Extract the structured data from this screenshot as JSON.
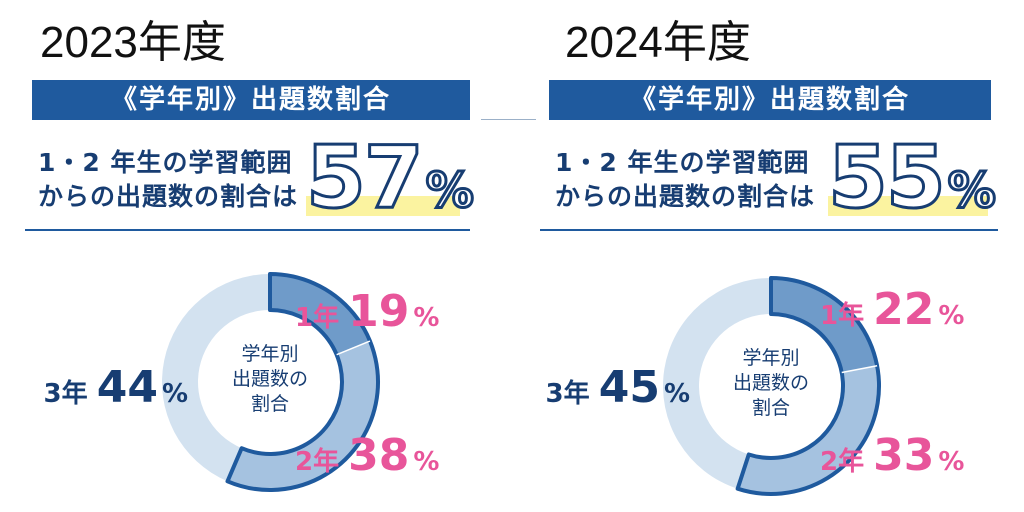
{
  "chart_data": [
    {
      "type": "pie",
      "year_title": "2023年度",
      "banner": "《学年別》出題数割合",
      "desc_line1": "1・2 年生の学習範囲",
      "desc_line2": "からの出題数の割合は",
      "highlight_value": "57",
      "highlight_unit": "%",
      "center_label": [
        "学年別",
        "出題数の",
        "割合"
      ],
      "categories": [
        "1年",
        "2年",
        "3年"
      ],
      "values": [
        19,
        38,
        44
      ],
      "colors": [
        "#6f9bc9",
        "#a5c2e0",
        "#d3e2f0"
      ]
    },
    {
      "type": "pie",
      "year_title": "2024年度",
      "banner": "《学年別》出題数割合",
      "desc_line1": "1・2 年生の学習範囲",
      "desc_line2": "からの出題数の割合は",
      "highlight_value": "55",
      "highlight_unit": "%",
      "center_label": [
        "学年別",
        "出題数の",
        "割合"
      ],
      "categories": [
        "1年",
        "2年",
        "3年"
      ],
      "values": [
        22,
        33,
        45
      ],
      "colors": [
        "#6f9bc9",
        "#a5c2e0",
        "#d3e2f0"
      ]
    }
  ],
  "colors": {
    "navy": "#1f5a9e",
    "text_navy": "#173d72",
    "pink": "#e8559a",
    "highlight": "#fbf3a0"
  }
}
